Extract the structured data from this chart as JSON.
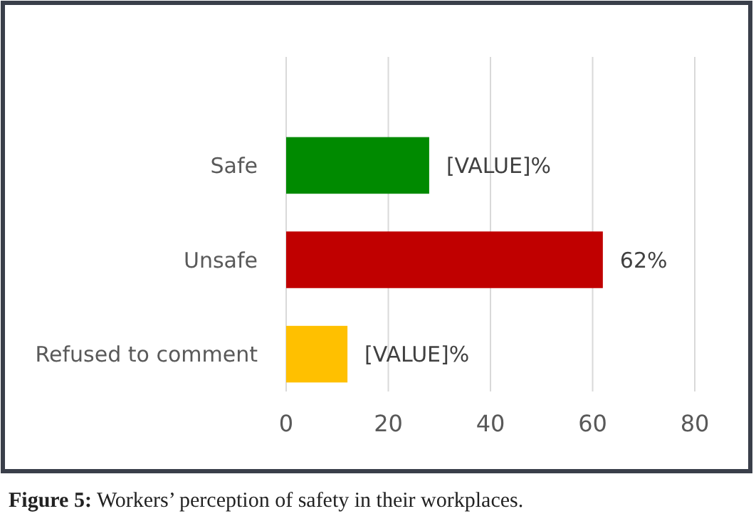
{
  "chart_data": {
    "type": "bar",
    "orientation": "horizontal",
    "categories": [
      "Safe",
      "Unsafe",
      "Refused to comment"
    ],
    "values": [
      28,
      62,
      12
    ],
    "colors": [
      "#008a00",
      "#c00000",
      "#ffc000"
    ],
    "value_labels": [
      "[VALUE]%",
      "62%",
      "[VALUE]%"
    ],
    "xlim": [
      0,
      80
    ],
    "xticks": [
      0,
      20,
      40,
      60,
      80
    ],
    "grid": "x",
    "annotations": [
      "Figure 5: Workers’ perception of safety in their workplaces."
    ]
  }
}
